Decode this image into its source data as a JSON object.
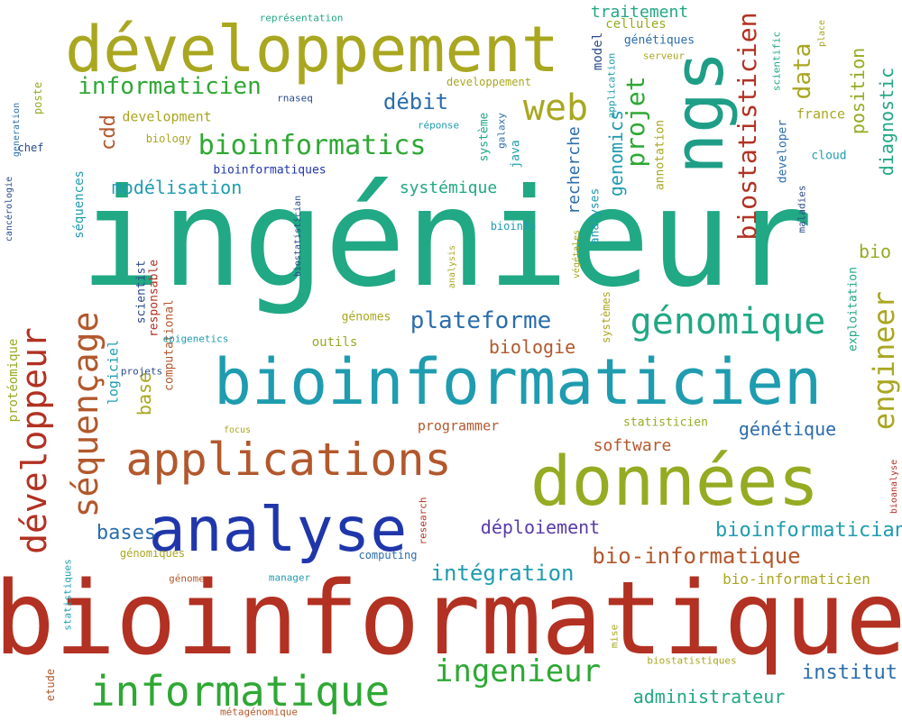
{
  "words": [
    {
      "id": "ingenieur",
      "text": "ingénieur",
      "color": "#21a884"
    },
    {
      "id": "bioinformatique",
      "text": "bioinformatique",
      "color": "#b23122"
    },
    {
      "id": "developpement",
      "text": "développement",
      "color": "#a9a720"
    },
    {
      "id": "bioinformaticien",
      "text": "bioinformaticien",
      "color": "#1f9caf"
    },
    {
      "id": "donnees",
      "text": "données",
      "color": "#95ab22"
    },
    {
      "id": "analyse",
      "text": "analyse",
      "color": "#2036ab"
    },
    {
      "id": "applications",
      "text": "applications",
      "color": "#b2582c"
    },
    {
      "id": "informatique",
      "text": "informatique",
      "color": "#2ea834"
    },
    {
      "id": "ngs",
      "text": "ngs",
      "color": "#1e9e87"
    },
    {
      "id": "developpeur",
      "text": "développeur",
      "color": "#b23122"
    },
    {
      "id": "sequencage",
      "text": "séquençage",
      "color": "#b2582c"
    },
    {
      "id": "genomique",
      "text": "génomique",
      "color": "#21a884"
    },
    {
      "id": "web",
      "text": "web",
      "color": "#a9a720"
    },
    {
      "id": "ingenieur2",
      "text": "ingenieur",
      "color": "#2ea834"
    },
    {
      "id": "bioinformatics",
      "text": "bioinformatics",
      "color": "#2ea834"
    },
    {
      "id": "engineer",
      "text": "engineer",
      "color": "#a9a720"
    },
    {
      "id": "biostatisticien",
      "text": "biostatisticien",
      "color": "#b23122"
    },
    {
      "id": "informaticien",
      "text": "informaticien",
      "color": "#2ea834"
    },
    {
      "id": "projet",
      "text": "projet",
      "color": "#2ea834"
    },
    {
      "id": "data",
      "text": "data",
      "color": "#a9a720"
    },
    {
      "id": "plateforme",
      "text": "plateforme",
      "color": "#2b6dab"
    },
    {
      "id": "integration",
      "text": "intégration",
      "color": "#1f9caf"
    },
    {
      "id": "bio-informatique",
      "text": "bio-informatique",
      "color": "#b2582c"
    },
    {
      "id": "bioinformatician",
      "text": "bioinformatician",
      "color": "#1f9caf"
    },
    {
      "id": "institut",
      "text": "institut",
      "color": "#2b6dab"
    },
    {
      "id": "administrateur",
      "text": "administrateur",
      "color": "#21a884"
    },
    {
      "id": "bases",
      "text": "bases",
      "color": "#2b6dab"
    },
    {
      "id": "deploiement",
      "text": "déploiement",
      "color": "#5a3aab"
    },
    {
      "id": "debit",
      "text": "débit",
      "color": "#2b6dab"
    },
    {
      "id": "modelisation",
      "text": "modélisation",
      "color": "#1f9caf"
    },
    {
      "id": "genetique",
      "text": "génétique",
      "color": "#2b6dab"
    },
    {
      "id": "biologie",
      "text": "biologie",
      "color": "#b2582c"
    },
    {
      "id": "software",
      "text": "software",
      "color": "#b2582c"
    },
    {
      "id": "diagnostic",
      "text": "diagnostic",
      "color": "#21a884"
    },
    {
      "id": "position",
      "text": "position",
      "color": "#95ab22"
    },
    {
      "id": "base",
      "text": "base",
      "color": "#a9a720"
    },
    {
      "id": "genomics",
      "text": "genomics",
      "color": "#1f9caf"
    },
    {
      "id": "recherche",
      "text": "recherche",
      "color": "#2b6dab"
    },
    {
      "id": "systemique",
      "text": "systémique",
      "color": "#21a884"
    },
    {
      "id": "cdd",
      "text": "cdd",
      "color": "#b2582c"
    },
    {
      "id": "bio",
      "text": "bio",
      "color": "#95ab22"
    },
    {
      "id": "traitement",
      "text": "traitement",
      "color": "#21a884"
    },
    {
      "id": "bio-informaticien",
      "text": "bio-informaticien",
      "color": "#a9a720"
    },
    {
      "id": "programmer",
      "text": "programmer",
      "color": "#b2582c"
    },
    {
      "id": "development",
      "text": "development",
      "color": "#a9a720"
    },
    {
      "id": "france",
      "text": "france",
      "color": "#a9a720"
    },
    {
      "id": "logiciel",
      "text": "logiciel",
      "color": "#1f9caf"
    },
    {
      "id": "outils",
      "text": "outils",
      "color": "#95ab22"
    },
    {
      "id": "proteomique",
      "text": "protéomique",
      "color": "#95ab22"
    },
    {
      "id": "sequences",
      "text": "séquences",
      "color": "#1f9caf"
    },
    {
      "id": "model",
      "text": "model",
      "color": "#2b4a8a"
    },
    {
      "id": "cellules",
      "text": "cellules",
      "color": "#95ab22"
    },
    {
      "id": "genetiques",
      "text": "génétiques",
      "color": "#2b6dab"
    },
    {
      "id": "statisticien",
      "text": "statisticien",
      "color": "#95ab22"
    },
    {
      "id": "genomes",
      "text": "génomes",
      "color": "#a9a720"
    },
    {
      "id": "scientist",
      "text": "scientist",
      "color": "#2b4a8a"
    },
    {
      "id": "responsable",
      "text": "responsable",
      "color": "#b23122"
    },
    {
      "id": "computational",
      "text": "computational",
      "color": "#b2582c"
    },
    {
      "id": "developer",
      "text": "developer",
      "color": "#2b6dab"
    },
    {
      "id": "exploitation",
      "text": "exploitation",
      "color": "#21a884"
    },
    {
      "id": "annotation",
      "text": "annotation",
      "color": "#a9a720"
    },
    {
      "id": "analyses",
      "text": "analyses",
      "color": "#1f9caf"
    },
    {
      "id": "systeme",
      "text": "système",
      "color": "#21a884"
    },
    {
      "id": "java",
      "text": "java",
      "color": "#1f9caf"
    },
    {
      "id": "cloud",
      "text": "cloud",
      "color": "#1f9caf"
    },
    {
      "id": "bioinformatiques",
      "text": "bioinformatiques",
      "color": "#2036ab"
    },
    {
      "id": "biology",
      "text": "biology",
      "color": "#a9a720"
    },
    {
      "id": "developpement2",
      "text": "developpement",
      "color": "#a9a720"
    },
    {
      "id": "chef",
      "text": "chef",
      "color": "#2b4a8a"
    },
    {
      "id": "poste",
      "text": "poste",
      "color": "#95ab22"
    },
    {
      "id": "rnaseq",
      "text": "rnaseq",
      "color": "#2b4a8a"
    },
    {
      "id": "reponse",
      "text": "réponse",
      "color": "#1f9caf"
    },
    {
      "id": "galaxy",
      "text": "galaxy",
      "color": "#2b6dab"
    },
    {
      "id": "bioinfo",
      "text": "bioinfo",
      "color": "#1f9caf"
    },
    {
      "id": "systemes",
      "text": "systèmes",
      "color": "#a9a720"
    },
    {
      "id": "epigenetics",
      "text": "epigenetics",
      "color": "#1f9caf"
    },
    {
      "id": "projets",
      "text": "projets",
      "color": "#2b4a8a"
    },
    {
      "id": "focus",
      "text": "focus",
      "color": "#a9a720"
    },
    {
      "id": "computing",
      "text": "computing",
      "color": "#2b6dab"
    },
    {
      "id": "genomiques",
      "text": "génomiques",
      "color": "#a9a720"
    },
    {
      "id": "statistiques",
      "text": "statistiques",
      "color": "#1f9caf"
    },
    {
      "id": "genome",
      "text": "génome",
      "color": "#b2582c"
    },
    {
      "id": "manager",
      "text": "manager",
      "color": "#1f9caf"
    },
    {
      "id": "research",
      "text": "research",
      "color": "#b23122"
    },
    {
      "id": "mise",
      "text": "mise",
      "color": "#a9a720"
    },
    {
      "id": "etude",
      "text": "etude",
      "color": "#b2582c"
    },
    {
      "id": "metagenomique",
      "text": "métagénomique",
      "color": "#b2582c"
    },
    {
      "id": "biostatistiques",
      "text": "biostatistiques",
      "color": "#a9a720"
    },
    {
      "id": "bioanalyse",
      "text": "bioanalyse",
      "color": "#b23122"
    },
    {
      "id": "representation",
      "text": "représentation",
      "color": "#21a884"
    },
    {
      "id": "application",
      "text": "application",
      "color": "#1f9caf"
    },
    {
      "id": "serveur",
      "text": "serveur",
      "color": "#a9a720"
    },
    {
      "id": "scientific",
      "text": "scientific",
      "color": "#21a884"
    },
    {
      "id": "place",
      "text": "place",
      "color": "#a9a720"
    },
    {
      "id": "maladies",
      "text": "maladies",
      "color": "#2b4a8a"
    },
    {
      "id": "biostatistician",
      "text": "biostatistician",
      "color": "#2b4a8a"
    },
    {
      "id": "analysis",
      "text": "analysis",
      "color": "#a9a720"
    },
    {
      "id": "vegetales",
      "text": "végétales",
      "color": "#a9a720"
    },
    {
      "id": "cancerologie",
      "text": "cancérologie",
      "color": "#2b4a8a"
    },
    {
      "id": "generation",
      "text": "generation",
      "color": "#2b6dab"
    }
  ]
}
